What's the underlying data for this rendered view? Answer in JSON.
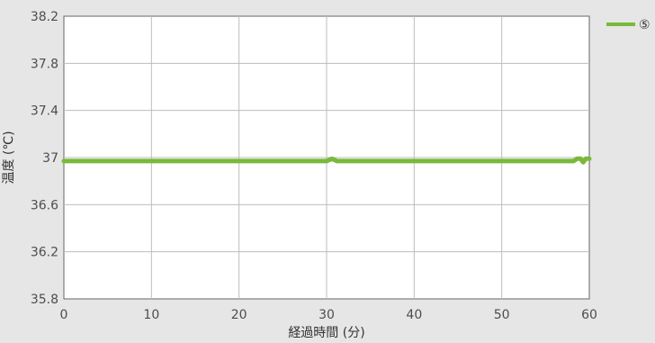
{
  "chart_data": {
    "type": "line",
    "title": "",
    "xlabel": "経過時間 (分)",
    "ylabel": "温度 (℃)",
    "xlim": [
      0,
      60
    ],
    "ylim": [
      35.8,
      38.2
    ],
    "x_ticks": [
      "0",
      "10",
      "20",
      "30",
      "40",
      "50",
      "60"
    ],
    "y_ticks": [
      "35.8",
      "36.2",
      "36.6",
      "37",
      "37.4",
      "37.8",
      "38.2"
    ],
    "grid": true,
    "legend_position": "top-right",
    "colors": {
      "series": "#7ab93a",
      "grid": "#bdbdbd",
      "plot_bg": "#ffffff"
    },
    "series": [
      {
        "name": "⑤",
        "x": [
          0,
          10,
          20,
          30,
          30.6,
          31.2,
          40,
          50,
          58.2,
          58.6,
          59.0,
          59.3,
          59.6,
          60
        ],
        "values": [
          36.97,
          36.97,
          36.97,
          36.97,
          36.99,
          36.97,
          36.97,
          36.97,
          36.97,
          36.99,
          36.99,
          36.96,
          36.99,
          36.99
        ]
      }
    ]
  }
}
